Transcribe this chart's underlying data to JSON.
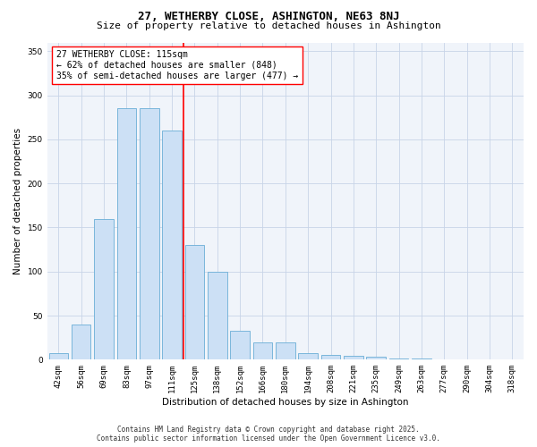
{
  "title": "27, WETHERBY CLOSE, ASHINGTON, NE63 8NJ",
  "subtitle": "Size of property relative to detached houses in Ashington",
  "xlabel": "Distribution of detached houses by size in Ashington",
  "ylabel": "Number of detached properties",
  "categories": [
    "42sqm",
    "56sqm",
    "69sqm",
    "83sqm",
    "97sqm",
    "111sqm",
    "125sqm",
    "138sqm",
    "152sqm",
    "166sqm",
    "180sqm",
    "194sqm",
    "208sqm",
    "221sqm",
    "235sqm",
    "249sqm",
    "263sqm",
    "277sqm",
    "290sqm",
    "304sqm",
    "318sqm"
  ],
  "values": [
    7,
    40,
    160,
    285,
    285,
    260,
    130,
    100,
    33,
    20,
    20,
    7,
    5,
    4,
    3,
    1,
    1,
    0,
    0,
    0,
    0
  ],
  "bar_color": "#cce0f5",
  "bar_edgecolor": "#6aaed6",
  "vline_x": 5.5,
  "vline_color": "red",
  "annotation_text": "27 WETHERBY CLOSE: 115sqm\n← 62% of detached houses are smaller (848)\n35% of semi-detached houses are larger (477) →",
  "ylim": [
    0,
    360
  ],
  "yticks": [
    0,
    50,
    100,
    150,
    200,
    250,
    300,
    350
  ],
  "background_color": "#f0f4fa",
  "grid_color": "#c8d4e8",
  "footer_line1": "Contains HM Land Registry data © Crown copyright and database right 2025.",
  "footer_line2": "Contains public sector information licensed under the Open Government Licence v3.0.",
  "title_fontsize": 9,
  "subtitle_fontsize": 8,
  "axis_label_fontsize": 7.5,
  "tick_fontsize": 6.5,
  "annotation_fontsize": 7,
  "footer_fontsize": 5.5
}
